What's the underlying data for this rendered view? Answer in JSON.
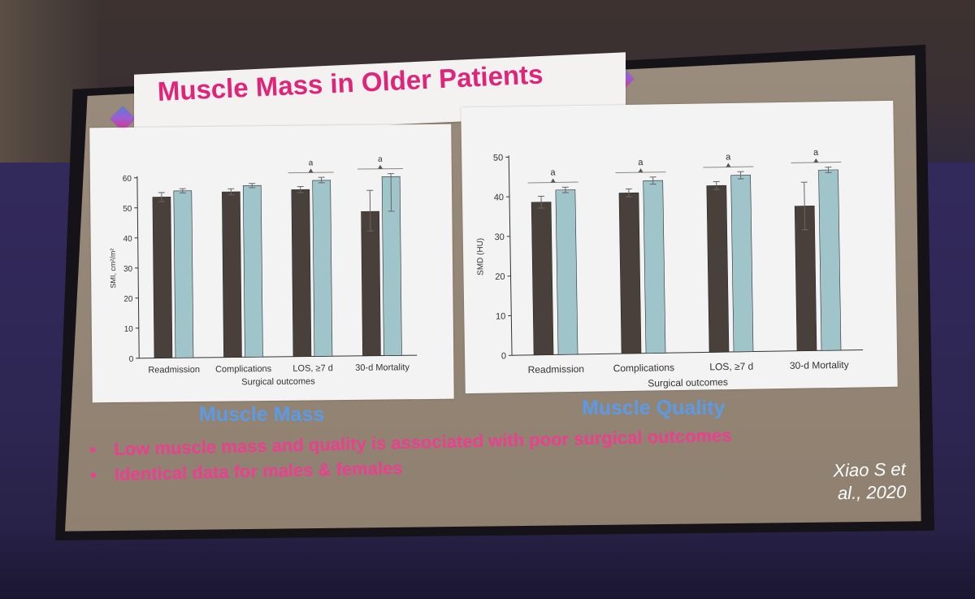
{
  "slide": {
    "title": "Muscle Mass in Older Patients",
    "left_caption": "Muscle Mass",
    "right_caption": "Muscle Quality",
    "bullets": [
      "Low muscle mass and quality is associated with poor surgical outcomes",
      "Identical data for males & females"
    ],
    "citation_line1": "Xiao S et",
    "citation_line2": "al., 2020",
    "colors": {
      "title": "#e0247a",
      "caption": "#5b9be6",
      "bullet": "#ec3f8f",
      "bar_dark": "#4a403b",
      "bar_light": "#9fc4c9"
    }
  },
  "chart_data": [
    {
      "type": "bar",
      "xlabel": "Surgical outcomes",
      "ylabel": "SMI, cm²/m²",
      "ylim": [
        0,
        60
      ],
      "yticks": [
        0,
        10,
        20,
        30,
        40,
        50,
        60
      ],
      "categories": [
        "Readmission",
        "Complications",
        "LOS, ≥7 d",
        "30-d Mortality"
      ],
      "significance": [
        "",
        "",
        "a",
        "a"
      ],
      "series": [
        {
          "values": [
            53.5,
            55,
            55.5,
            48
          ],
          "err_low": [
            52,
            54,
            54.5,
            41.5
          ],
          "err_high": [
            55,
            56,
            56.5,
            55
          ]
        },
        {
          "values": [
            55.5,
            57,
            58.5,
            59.5
          ],
          "err_low": [
            54.8,
            56.3,
            57.7,
            48
          ],
          "err_high": [
            56.2,
            57.7,
            59.5,
            60.5
          ]
        }
      ]
    },
    {
      "type": "bar",
      "xlabel": "Surgical outcomes",
      "ylabel": "SMD (HU)",
      "ylim": [
        0,
        50
      ],
      "yticks": [
        0,
        10,
        20,
        30,
        40,
        50
      ],
      "categories": [
        "Readmission",
        "Complications",
        "LOS, ≥7 d",
        "30-d Mortality"
      ],
      "significance": [
        "a",
        "a",
        "a",
        "a"
      ],
      "series": [
        {
          "values": [
            38.5,
            40.5,
            42,
            36.5
          ],
          "err_low": [
            37,
            39.5,
            41,
            30.5
          ],
          "err_high": [
            40,
            41.5,
            43,
            42.5
          ]
        },
        {
          "values": [
            41.5,
            43.5,
            44.5,
            45.5
          ],
          "err_low": [
            40.8,
            42.6,
            43.6,
            44.8
          ],
          "err_high": [
            42.2,
            44.4,
            45.4,
            46.2
          ]
        }
      ]
    }
  ]
}
